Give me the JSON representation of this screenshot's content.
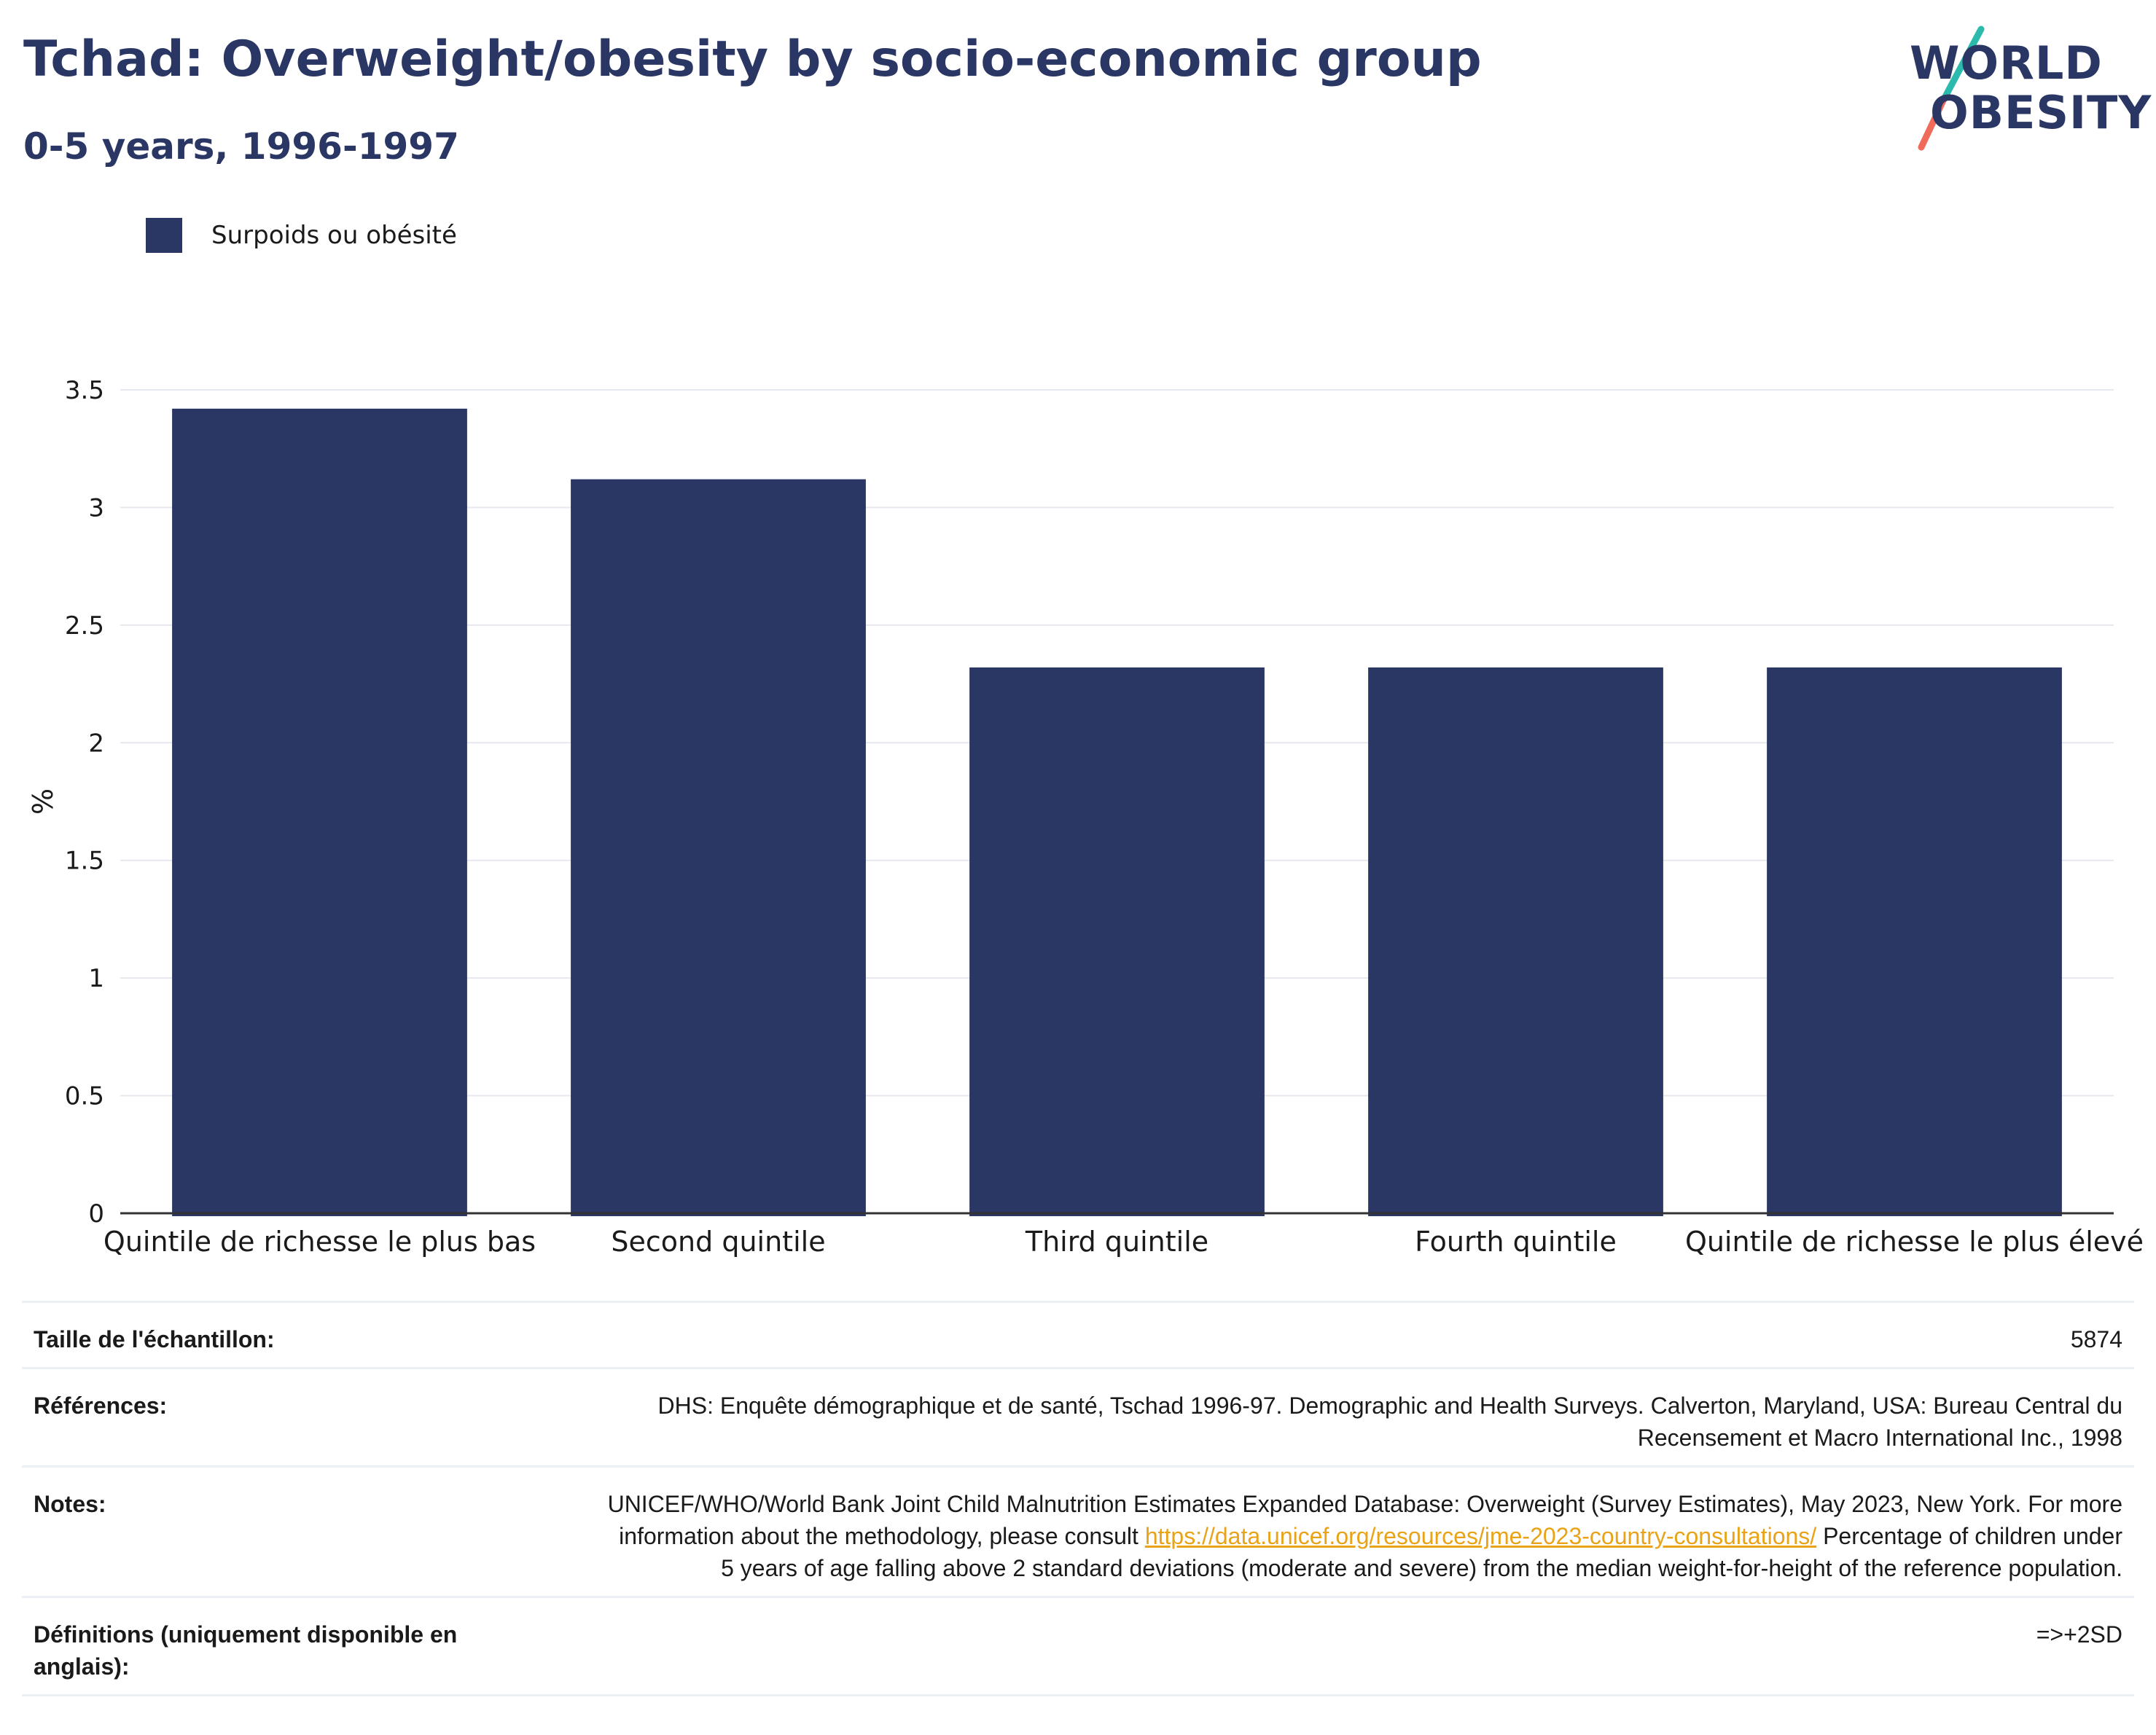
{
  "header": {
    "title": "Tchad: Overweight/obesity by socio-economic group",
    "subtitle": "0-5 years, 1996-1997"
  },
  "logo": {
    "line1": "WORLD",
    "line2": "OBESITY"
  },
  "colors": {
    "bar": "#2a3663",
    "grid": "#e6e8ef",
    "axis": "#333333",
    "link": "#e8a317",
    "logo_slash_top": "#2bbbad",
    "logo_slash_bottom": "#f06b5a"
  },
  "legend": {
    "label": "Surpoids ou obésité"
  },
  "chart_data": {
    "type": "bar",
    "categories": [
      "Quintile de richesse le plus bas",
      "Second quintile",
      "Third quintile",
      "Fourth quintile",
      "Quintile de richesse le plus élevé"
    ],
    "series": [
      {
        "name": "Surpoids ou obésité",
        "values": [
          3.42,
          3.12,
          2.32,
          2.32,
          2.32
        ]
      }
    ],
    "ylabel": "%",
    "ylim": [
      0,
      3.5
    ],
    "yticks": [
      0,
      0.5,
      1,
      1.5,
      2,
      2.5,
      3,
      3.5
    ],
    "ytick_labels": [
      "0",
      "0.5",
      "1",
      "1.5",
      "2",
      "2.5",
      "3",
      "3.5"
    ],
    "grid": true,
    "legend_position": "top-left"
  },
  "meta": {
    "sample_label": "Taille de l'échantillon:",
    "sample_value": "5874",
    "refs_label": "Références:",
    "refs_value": "DHS: Enquête démographique et de santé, Tschad 1996-97. Demographic and Health Surveys. Calverton, Maryland, USA: Bureau Central du Recensement et Macro International Inc., 1998",
    "notes_label": "Notes:",
    "notes_pre": "UNICEF/WHO/World Bank Joint Child Malnutrition Estimates Expanded Database: Overweight (Survey Estimates), May 2023, New York. For more information about the methodology, please consult ",
    "notes_link": "https://data.unicef.org/resources/jme-2023-country-consultations/",
    "notes_post": " Percentage of children under 5 years of age falling above 2 standard deviations (moderate and severe) from the median weight-for-height of the reference population.",
    "defs_label": "Définitions (uniquement disponible en anglais):",
    "defs_value": "=>+2SD"
  }
}
